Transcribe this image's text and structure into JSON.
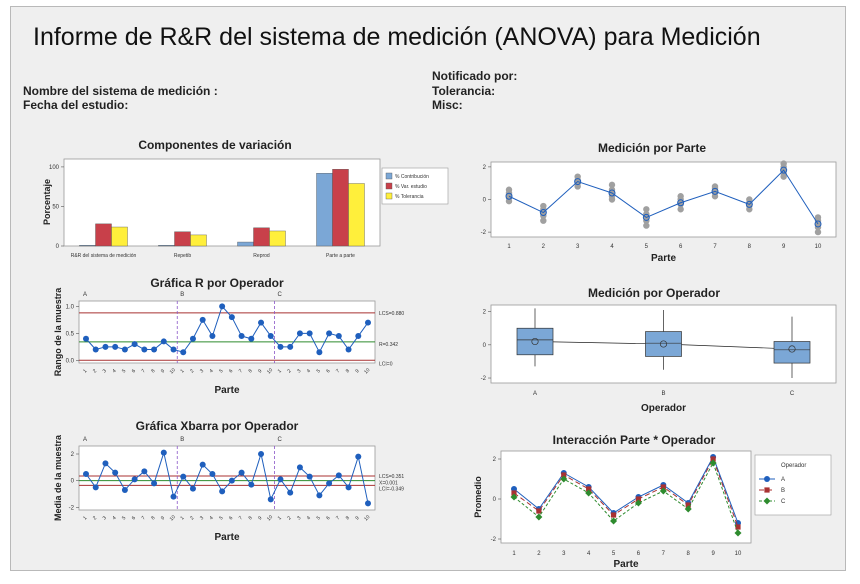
{
  "report": {
    "title": "Informe de R&R del sistema de medición  (ANOVA) para Medición",
    "meta_left": [
      "Nombre del sistema de medición :",
      "Fecha del estudio:"
    ],
    "meta_right": [
      "Notificado por:",
      "Tolerancia:",
      "Misc:"
    ]
  },
  "colors": {
    "blue": "#7ba7d6",
    "red": "#c8404a",
    "yellow": "#ffef3b",
    "pt": "#1f5fbd",
    "gray": "#a0a0a0",
    "limit": "#a83232",
    "center": "#2e8b2e",
    "sep": "#8a55c8"
  },
  "chart_data": [
    {
      "id": "components",
      "type": "bar",
      "title": "Componentes de variación",
      "ylabel": "Porcentaje",
      "categories": [
        "R&R del sistema de medición",
        "Repetib",
        "Reprod",
        "Parte a parte"
      ],
      "yticks": [
        0,
        50,
        100
      ],
      "ylim": [
        0,
        110
      ],
      "series": [
        {
          "name": "% Contribución",
          "values": [
            1,
            1,
            5,
            92
          ]
        },
        {
          "name": "% Var. estudio",
          "values": [
            28,
            18,
            23,
            97
          ]
        },
        {
          "name": "% Tolerancia",
          "values": [
            24,
            14,
            19,
            79
          ]
        }
      ]
    },
    {
      "id": "rchart",
      "type": "line",
      "title": "Gráfica R por Operador",
      "xlabel": "Parte",
      "ylabel": "Rango de la muestra",
      "operators": [
        "A",
        "B",
        "C"
      ],
      "yticks": [
        "0.0",
        "0.5",
        "1.0"
      ],
      "ylim": [
        -0.05,
        1.1
      ],
      "ucl": 0.88,
      "rbar": 0.342,
      "lcl": 0,
      "ucl_label": "LCS=0.880",
      "rbar_label": "R=0.342",
      "lcl_label": "LCI=0",
      "tick_labels": [
        "1",
        "2",
        "3",
        "4",
        "5",
        "6",
        "7",
        "8",
        "9",
        "10"
      ],
      "values": [
        0.4,
        0.2,
        0.25,
        0.25,
        0.2,
        0.3,
        0.2,
        0.2,
        0.35,
        0.2,
        0.15,
        0.4,
        0.75,
        0.45,
        1.0,
        0.8,
        0.45,
        0.4,
        0.7,
        0.45,
        0.25,
        0.25,
        0.5,
        0.5,
        0.15,
        0.5,
        0.45,
        0.2,
        0.45,
        0.7
      ]
    },
    {
      "id": "xbar",
      "type": "line",
      "title": "Gráfica Xbarra por Operador",
      "xlabel": "Parte",
      "ylabel": "Media de la muestra",
      "operators": [
        "A",
        "B",
        "C"
      ],
      "yticks": [
        "-2",
        "0",
        "2"
      ],
      "ylim": [
        -2.2,
        2.6
      ],
      "ucl": 0.351,
      "xbar": 0.001,
      "lcl": -0.349,
      "ucl_label": "LCS=0.351",
      "xbar_label": "X=0.001",
      "lcl_label": "LCI=-0.349",
      "tick_labels": [
        "1",
        "2",
        "3",
        "4",
        "5",
        "6",
        "7",
        "8",
        "9",
        "10"
      ],
      "values": [
        0.5,
        -0.5,
        1.3,
        0.6,
        -0.7,
        0.1,
        0.7,
        -0.2,
        2.1,
        -1.2,
        0.3,
        -0.6,
        1.2,
        0.5,
        -0.8,
        0.0,
        0.6,
        -0.3,
        2.0,
        -1.4,
        0.1,
        -0.9,
        1.0,
        0.3,
        -1.1,
        -0.2,
        0.4,
        -0.5,
        1.8,
        -1.7
      ]
    },
    {
      "id": "by_part",
      "type": "scatter",
      "title": "Medición por Parte",
      "xlabel": "Parte",
      "categories": [
        "1",
        "2",
        "3",
        "4",
        "5",
        "6",
        "7",
        "8",
        "9",
        "10"
      ],
      "yticks": [
        "-2",
        "0",
        "2"
      ],
      "ylim": [
        -2.3,
        2.3
      ],
      "means": [
        0.2,
        -0.8,
        1.1,
        0.4,
        -1.1,
        -0.2,
        0.5,
        -0.3,
        1.8,
        -1.5
      ],
      "points": [
        [
          -0.1,
          0.1,
          0.3,
          0.4,
          0.6
        ],
        [
          -1.3,
          -1.0,
          -0.8,
          -0.6,
          -0.4
        ],
        [
          0.8,
          1.0,
          1.1,
          1.2,
          1.4
        ],
        [
          0.0,
          0.2,
          0.4,
          0.6,
          0.9
        ],
        [
          -1.6,
          -1.3,
          -1.1,
          -0.9,
          -0.6
        ],
        [
          -0.6,
          -0.3,
          -0.2,
          0.0,
          0.2
        ],
        [
          0.2,
          0.4,
          0.5,
          0.7,
          0.8
        ],
        [
          -0.6,
          -0.4,
          -0.3,
          -0.2,
          0.0
        ],
        [
          1.4,
          1.6,
          1.8,
          2.0,
          2.2
        ],
        [
          -2.0,
          -1.7,
          -1.5,
          -1.3,
          -1.1
        ]
      ]
    },
    {
      "id": "by_operator",
      "type": "box",
      "title": "Medición por Operador",
      "xlabel": "Operador",
      "categories": [
        "A",
        "B",
        "C"
      ],
      "yticks": [
        "-2",
        "0",
        "2"
      ],
      "ylim": [
        -2.3,
        2.4
      ],
      "boxes": [
        {
          "min": -1.3,
          "q1": -0.6,
          "median": 0.3,
          "q3": 1.0,
          "max": 2.2,
          "mean": 0.2
        },
        {
          "min": -1.5,
          "q1": -0.7,
          "median": 0.1,
          "q3": 0.8,
          "max": 2.1,
          "mean": 0.05
        },
        {
          "min": -2.0,
          "q1": -1.1,
          "median": -0.3,
          "q3": 0.2,
          "max": 1.7,
          "mean": -0.25
        }
      ]
    },
    {
      "id": "interaction",
      "type": "line",
      "title": "Interacción Parte * Operador",
      "xlabel": "Parte",
      "ylabel": "Promedio",
      "categories": [
        "1",
        "2",
        "3",
        "4",
        "5",
        "6",
        "7",
        "8",
        "9",
        "10"
      ],
      "yticks": [
        "-2",
        "0",
        "2"
      ],
      "ylim": [
        -2.2,
        2.4
      ],
      "legend_title": "Operador",
      "series": [
        {
          "name": "A",
          "values": [
            0.5,
            -0.5,
            1.3,
            0.6,
            -0.7,
            0.1,
            0.7,
            -0.2,
            2.1,
            -1.2
          ]
        },
        {
          "name": "B",
          "values": [
            0.3,
            -0.6,
            1.2,
            0.5,
            -0.8,
            0.0,
            0.6,
            -0.3,
            2.0,
            -1.4
          ]
        },
        {
          "name": "C",
          "values": [
            0.1,
            -0.9,
            1.0,
            0.3,
            -1.1,
            -0.2,
            0.4,
            -0.5,
            1.8,
            -1.7
          ]
        }
      ]
    }
  ]
}
